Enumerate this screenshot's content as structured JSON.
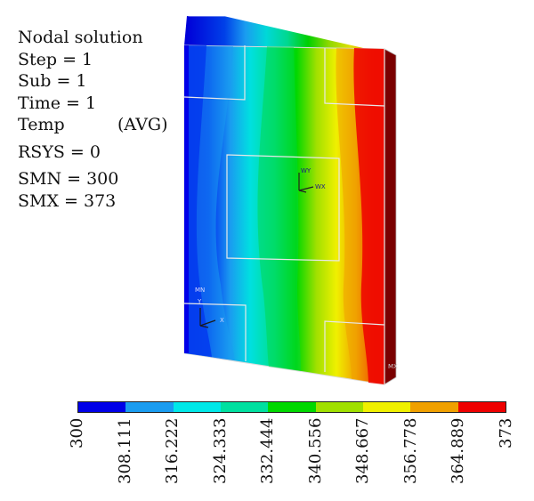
{
  "info": {
    "line1": "Nodal solution",
    "step": "Step = 1",
    "sub": "Sub = 1",
    "time": "Time = 1",
    "temp": "Temp",
    "avg": "(AVG)",
    "rsys": "RSYS = 0",
    "smn": "SMN = 300",
    "smx": "SMX = 373"
  },
  "legend": {
    "colors": [
      "#0000e8",
      "#1a9cf0",
      "#00e8e8",
      "#00e0a0",
      "#00d800",
      "#a0e000",
      "#f0f000",
      "#f0a000",
      "#ee0000"
    ],
    "ticks": [
      "300",
      "308.111",
      "316.222",
      "324.333",
      "332.444",
      "340.556",
      "348.667",
      "356.778",
      "364.889",
      "373"
    ]
  },
  "model": {
    "mn_label": "MN",
    "mx_label": "MX",
    "axis_y": "Y",
    "axis_x": "X",
    "wy_label": "WY",
    "wx_label": "WX"
  }
}
